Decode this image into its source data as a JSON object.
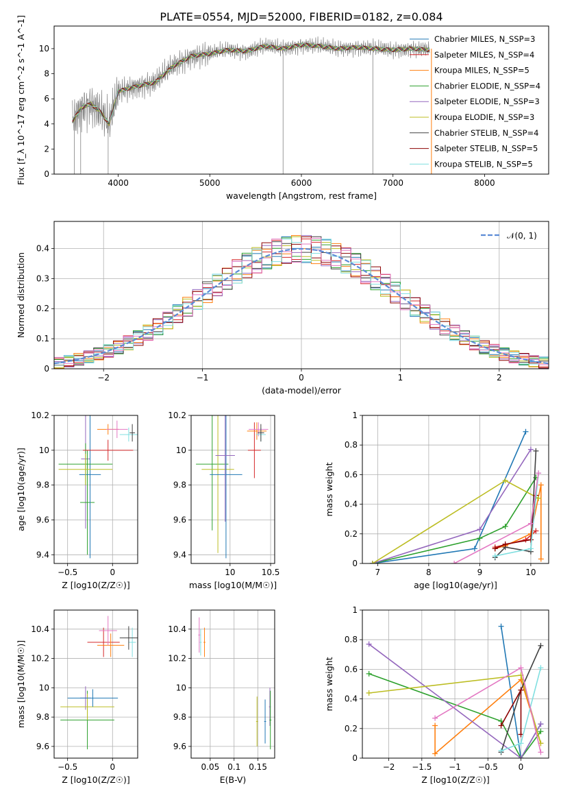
{
  "figure_title": "PLATE=0554, MJD=52000, FIBERID=0182, z=0.084",
  "colors": {
    "Chabrier MILES": "#1f77b4",
    "Salpeter MILES": "#d62728",
    "Kroupa MILES": "#ff7f0e",
    "Chabrier ELODIE": "#2ca02c",
    "Salpeter ELODIE": "#9467bd",
    "Kroupa ELODIE": "#bcbd22",
    "Chabrier STELIB": "#404040",
    "Salpeter STELIB": "#8c0000",
    "Kroupa STELIB": "#80dfe0",
    "normal_curve": "#5b8bd6"
  },
  "chart_data": [
    {
      "id": "spectrum",
      "type": "line",
      "xlabel": "wavelength [Angstrom, rest frame]",
      "ylabel": "Flux [f_λ 10^-17 erg cm^-2 s^-1 A^-1]",
      "xlim": [
        3300,
        8700
      ],
      "ylim": [
        0,
        11.8
      ],
      "xticks": [
        4000,
        5000,
        6000,
        7000,
        8000
      ],
      "yticks": [
        0,
        2,
        4,
        6,
        8,
        10
      ],
      "grid": false,
      "legend": "top-right",
      "observed": {
        "color": "#808080",
        "x": [
          3500,
          3600,
          3700,
          3800,
          3900,
          4000,
          4200,
          4400,
          4600,
          4800,
          5000,
          5200,
          5400,
          5600,
          5800,
          6000,
          6200,
          6400,
          6600,
          6800,
          7000,
          7200,
          7400
        ],
        "y": [
          4.2,
          5.3,
          5.6,
          5.0,
          4.0,
          6.6,
          7.0,
          7.3,
          8.6,
          9.4,
          9.6,
          9.9,
          9.8,
          10.2,
          10.0,
          10.3,
          10.2,
          10.0,
          10.1,
          10.0,
          9.9,
          10.0,
          9.9
        ]
      },
      "series": [
        {
          "name": "Chabrier MILES, N_SSP=3"
        },
        {
          "name": "Salpeter MILES, N_SSP=4"
        },
        {
          "name": "Kroupa MILES, N_SSP=5"
        },
        {
          "name": "Chabrier ELODIE, N_SSP=4"
        },
        {
          "name": "Salpeter ELODIE, N_SSP=3"
        },
        {
          "name": "Kroupa ELODIE, N_SSP=3"
        },
        {
          "name": "Chabrier STELIB, N_SSP=4"
        },
        {
          "name": "Salpeter STELIB, N_SSP=5"
        },
        {
          "name": "Kroupa STELIB, N_SSP=5"
        }
      ]
    },
    {
      "id": "residuals",
      "type": "histogram",
      "xlabel": "(data-model)/error",
      "ylabel": "Normed distribution",
      "xlim": [
        -2.5,
        2.5
      ],
      "ylim": [
        0,
        0.49
      ],
      "xticks": [
        -2,
        -1,
        0,
        1,
        2
      ],
      "yticks": [
        0.0,
        0.1,
        0.2,
        0.3,
        0.4
      ],
      "grid": true,
      "legend": "top-right",
      "normal_label": "𝒩(0, 1)",
      "bins": [
        -2.5,
        -2.4,
        -2.3,
        -2.2,
        -2.1,
        -2.0,
        -1.9,
        -1.8,
        -1.7,
        -1.6,
        -1.5,
        -1.4,
        -1.3,
        -1.2,
        -1.1,
        -1.0,
        -0.9,
        -0.8,
        -0.7,
        -0.6,
        -0.5,
        -0.4,
        -0.3,
        -0.2,
        -0.1,
        0.0,
        0.1,
        0.2,
        0.3,
        0.4,
        0.5,
        0.6,
        0.7,
        0.8,
        0.9,
        1.0,
        1.1,
        1.2,
        1.3,
        1.4,
        1.5,
        1.6,
        1.7,
        1.8,
        1.9,
        2.0,
        2.1,
        2.2,
        2.3,
        2.4,
        2.5
      ]
    },
    {
      "id": "age_vs_Z",
      "type": "scatter",
      "xlabel": "Z [log10(Z/Z☉)]",
      "ylabel": "age [log10(age/yr)]",
      "xlim": [
        -0.65,
        0.28
      ],
      "ylim": [
        9.35,
        10.2
      ],
      "xticks": [
        -0.5,
        0.0
      ],
      "yticks": [
        9.4,
        9.6,
        9.8,
        10.0,
        10.2
      ]
    },
    {
      "id": "age_vs_mass",
      "type": "scatter",
      "xlabel": "mass [log10(M/M☉)]",
      "ylabel": "",
      "xlim": [
        9.52,
        10.55
      ],
      "ylim": [
        9.35,
        10.2
      ],
      "xticks": [
        10.0,
        10.5
      ],
      "yticks": [
        9.4,
        9.6,
        9.8,
        10.0,
        10.2
      ]
    },
    {
      "id": "weight_vs_age",
      "type": "line",
      "xlabel": "age [log10(age/yr)]",
      "ylabel": "mass weight",
      "xlim": [
        6.7,
        10.35
      ],
      "ylim": [
        0,
        1.0
      ],
      "xticks": [
        7,
        8,
        9,
        10
      ],
      "yticks": [
        0.0,
        0.2,
        0.4,
        0.6,
        0.8,
        1.0
      ],
      "series": [
        {
          "name": "Chabrier MILES",
          "x": [
            6.9,
            8.9,
            9.9
          ],
          "y": [
            0.0,
            0.1,
            0.89
          ]
        },
        {
          "name": "Salpeter MILES",
          "x": [
            9.3,
            9.9,
            10.1
          ],
          "y": [
            0.11,
            0.16,
            0.22
          ]
        },
        {
          "name": "Kroupa MILES",
          "x": [
            9.3,
            9.5,
            10.0,
            10.2,
            10.2
          ],
          "y": [
            0.1,
            0.12,
            0.2,
            0.53,
            0.03
          ]
        },
        {
          "name": "Chabrier ELODIE",
          "x": [
            6.9,
            9.0,
            9.5,
            10.1
          ],
          "y": [
            0.0,
            0.17,
            0.25,
            0.58
          ]
        },
        {
          "name": "Salpeter ELODIE",
          "x": [
            6.9,
            9.0,
            10.0
          ],
          "y": [
            0.0,
            0.23,
            0.77
          ]
        },
        {
          "name": "Kroupa ELODIE",
          "x": [
            6.9,
            9.5,
            10.15
          ],
          "y": [
            0.0,
            0.56,
            0.44
          ]
        },
        {
          "name": "Chabrier STELIB",
          "x": [
            9.3,
            9.5,
            10.0,
            10.1
          ],
          "y": [
            0.04,
            0.11,
            0.08,
            0.76
          ]
        },
        {
          "name": "Salpeter STELIB",
          "x": [
            9.3,
            9.5,
            10.0,
            10.1
          ],
          "y": [
            0.1,
            0.13,
            0.16,
            0.46
          ]
        },
        {
          "name": "Kroupa STELIB",
          "x": [
            9.3,
            10.0,
            10.15
          ],
          "y": [
            0.05,
            0.1,
            0.61
          ]
        },
        {
          "name": "Pink",
          "x": [
            8.5,
            10.0,
            10.15
          ],
          "y": [
            0.0,
            0.27,
            0.61
          ]
        }
      ]
    },
    {
      "id": "mass_vs_Z",
      "type": "scatter",
      "xlabel": "Z [log10(Z/Z☉)]",
      "ylabel": "mass [log10(M/M☉)]",
      "xlim": [
        -0.65,
        0.28
      ],
      "ylim": [
        9.52,
        10.53
      ],
      "xticks": [
        -0.5,
        0.0
      ],
      "yticks": [
        9.6,
        9.8,
        10.0,
        10.2,
        10.4
      ]
    },
    {
      "id": "mass_vs_ebv",
      "type": "scatter",
      "xlabel": "E(B-V)",
      "ylabel": "",
      "xlim": [
        0.01,
        0.185
      ],
      "ylim": [
        9.52,
        10.53
      ],
      "xticks": [
        0.05,
        0.1,
        0.15
      ],
      "yticks": [
        9.6,
        9.8,
        10.0,
        10.2,
        10.4
      ]
    },
    {
      "id": "weight_vs_Z",
      "type": "line",
      "xlabel": "Z [log10(Z/Z☉)]",
      "ylabel": "mass weight",
      "xlim": [
        -2.4,
        0.42
      ],
      "ylim": [
        0,
        1.0
      ],
      "xticks": [
        -2.0,
        -1.5,
        -1.0,
        -0.5,
        0.0
      ],
      "yticks": [
        0.0,
        0.2,
        0.4,
        0.6,
        0.8,
        1.0
      ],
      "series": [
        {
          "name": "Chabrier MILES",
          "x": [
            -0.3,
            0.0,
            0.3
          ],
          "y": [
            0.89,
            0.0,
            0.23
          ]
        },
        {
          "name": "Kroupa MILES",
          "x": [
            -1.3,
            -1.3,
            0.0,
            0.3
          ],
          "y": [
            0.22,
            0.03,
            0.53,
            0.1
          ]
        },
        {
          "name": "Chabrier ELODIE",
          "x": [
            -2.3,
            -0.3,
            0.0,
            0.3
          ],
          "y": [
            0.57,
            0.25,
            0.0,
            0.18
          ]
        },
        {
          "name": "Salpeter ELODIE",
          "x": [
            -2.3,
            0.0,
            0.3
          ],
          "y": [
            0.77,
            0.0,
            0.23
          ]
        },
        {
          "name": "Kroupa ELODIE",
          "x": [
            -2.3,
            0.0,
            0.3
          ],
          "y": [
            0.44,
            0.56,
            0.1
          ]
        },
        {
          "name": "Chabrier STELIB",
          "x": [
            -0.3,
            0.0,
            0.3
          ],
          "y": [
            0.04,
            0.46,
            0.76
          ]
        },
        {
          "name": "Salpeter STELIB",
          "x": [
            -0.3,
            0.0,
            0.0
          ],
          "y": [
            0.22,
            0.46,
            0.16
          ]
        },
        {
          "name": "Kroupa STELIB",
          "x": [
            -0.3,
            0.0,
            0.3
          ],
          "y": [
            0.05,
            0.1,
            0.61
          ]
        },
        {
          "name": "Pink",
          "x": [
            -1.3,
            0.0,
            0.3
          ],
          "y": [
            0.27,
            0.61,
            0.04
          ]
        }
      ]
    }
  ]
}
